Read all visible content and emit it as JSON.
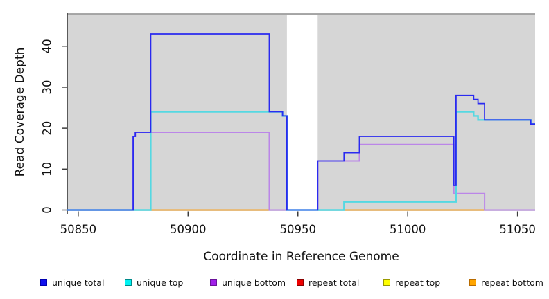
{
  "chart_data": {
    "type": "line",
    "subtype": "step-after",
    "title": "",
    "xlabel": "Coordinate in Reference Genome",
    "ylabel": "Read Coverage Depth",
    "xlim": [
      50845,
      51058
    ],
    "ylim": [
      0,
      47.9
    ],
    "x_ticks": [
      50850,
      50900,
      50950,
      51000,
      51050
    ],
    "y_ticks": [
      0,
      10,
      20,
      30,
      40
    ],
    "grid": "off",
    "plot_background": "#d6d6d6",
    "gap_region": {
      "start": 50945,
      "end": 50959,
      "color": "#ffffff"
    },
    "series": [
      {
        "name": "repeat total",
        "color": "#dd2222",
        "points": [
          [
            50845,
            0
          ]
        ]
      },
      {
        "name": "repeat top",
        "color": "#eeee00",
        "points": [
          [
            50845,
            0
          ]
        ]
      },
      {
        "name": "repeat bottom",
        "color": "#ff9e1c",
        "points": [
          [
            50845,
            0
          ]
        ]
      },
      {
        "name": "unique bottom",
        "color": "#bb86e8",
        "points": [
          [
            50845,
            0
          ],
          [
            50875,
            18
          ],
          [
            50876,
            19
          ],
          [
            50937,
            0
          ],
          [
            50959,
            12
          ],
          [
            50978,
            16
          ],
          [
            51021,
            4
          ],
          [
            51035,
            0
          ]
        ]
      },
      {
        "name": "unique top",
        "color": "#55d8e2",
        "points": [
          [
            50845,
            0
          ],
          [
            50883,
            24
          ],
          [
            50943,
            23
          ],
          [
            50945,
            0
          ],
          [
            50971,
            2
          ],
          [
            51022,
            24
          ],
          [
            51030,
            23
          ],
          [
            51032,
            22
          ],
          [
            51056,
            21
          ]
        ]
      },
      {
        "name": "unique total",
        "color": "#2a2af0",
        "points": [
          [
            50845,
            0
          ],
          [
            50875,
            18
          ],
          [
            50876,
            19
          ],
          [
            50883,
            43
          ],
          [
            50937,
            24
          ],
          [
            50943,
            23
          ],
          [
            50945,
            0
          ],
          [
            50959,
            12
          ],
          [
            50971,
            14
          ],
          [
            50978,
            18
          ],
          [
            51021,
            6
          ],
          [
            51022,
            28
          ],
          [
            51030,
            27
          ],
          [
            51032,
            26
          ],
          [
            51035,
            22
          ],
          [
            51056,
            21
          ]
        ]
      }
    ],
    "legend": [
      {
        "label": "unique total",
        "fill": "#0f0fee",
        "border": "#0000b0"
      },
      {
        "label": "unique top",
        "fill": "#00f2f2",
        "border": "#008a8a"
      },
      {
        "label": "unique bottom",
        "fill": "#a01fe8",
        "border": "#6a1299"
      },
      {
        "label": "repeat total",
        "fill": "#ee0000",
        "border": "#8b0000"
      },
      {
        "label": "repeat top",
        "fill": "#ffff00",
        "border": "#999900"
      },
      {
        "label": "repeat bottom",
        "fill": "#ffa500",
        "border": "#b86b00"
      }
    ],
    "legend_position": "bottom"
  }
}
